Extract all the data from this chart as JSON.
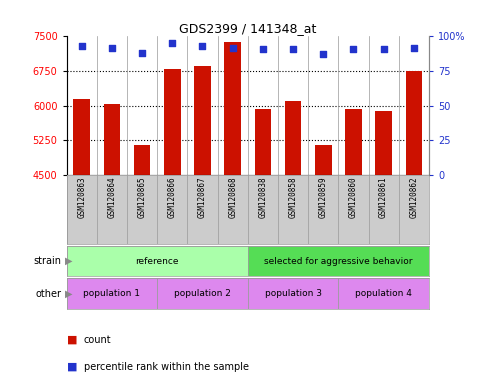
{
  "title": "GDS2399 / 141348_at",
  "samples": [
    "GSM120863",
    "GSM120864",
    "GSM120865",
    "GSM120866",
    "GSM120867",
    "GSM120868",
    "GSM120838",
    "GSM120858",
    "GSM120859",
    "GSM120860",
    "GSM120861",
    "GSM120862"
  ],
  "counts": [
    6150,
    6030,
    5150,
    6800,
    6870,
    7380,
    5920,
    6100,
    5155,
    5920,
    5880,
    6760
  ],
  "percentile_ranks": [
    93,
    92,
    88,
    95,
    93,
    92,
    91,
    91,
    87,
    91,
    91,
    92
  ],
  "ymin": 4500,
  "ymax": 7500,
  "yticks_left": [
    4500,
    5250,
    6000,
    6750,
    7500
  ],
  "yticks_right": [
    0,
    25,
    50,
    75,
    100
  ],
  "hgrid_lines": [
    5250,
    6000,
    6750
  ],
  "bar_color": "#cc1100",
  "dot_color": "#2233cc",
  "strain_groups": [
    {
      "label": "reference",
      "start": 0,
      "end": 6,
      "color": "#aaffaa"
    },
    {
      "label": "selected for aggressive behavior",
      "start": 6,
      "end": 12,
      "color": "#55dd55"
    }
  ],
  "pop_groups": [
    {
      "label": "population 1",
      "start": 0,
      "end": 3
    },
    {
      "label": "population 2",
      "start": 3,
      "end": 6
    },
    {
      "label": "population 3",
      "start": 6,
      "end": 9
    },
    {
      "label": "population 4",
      "start": 9,
      "end": 12
    }
  ],
  "pop_color": "#dd88ee",
  "tick_area_color": "#cccccc",
  "border_color": "#999999",
  "legend_count_color": "#cc1100",
  "legend_dot_color": "#2233cc"
}
